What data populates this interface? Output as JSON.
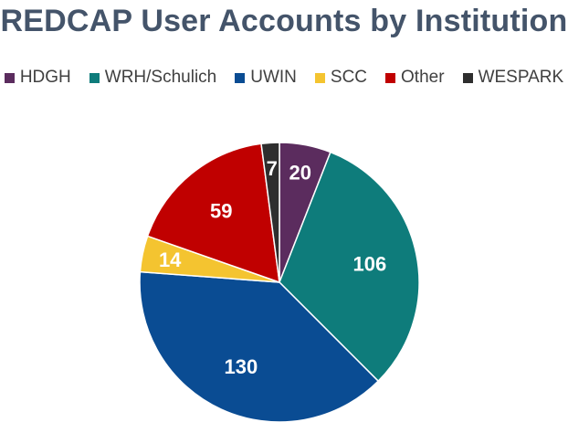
{
  "chart_data": {
    "type": "pie",
    "title": "REDCAP User Accounts by Institution",
    "legend_position": "top",
    "start_angle_deg": 0,
    "direction": "clockwise",
    "slices": [
      {
        "label": "HDGH",
        "value": 20,
        "color": "#5B2C5E"
      },
      {
        "label": "WRH/Schulich",
        "value": 106,
        "color": "#0E7C7B"
      },
      {
        "label": "UWIN",
        "value": 130,
        "color": "#0A4C93"
      },
      {
        "label": "SCC",
        "value": 14,
        "color": "#F4C430"
      },
      {
        "label": "Other",
        "value": 59,
        "color": "#C00000"
      },
      {
        "label": "WESPARK",
        "value": 7,
        "color": "#2E2E2E"
      }
    ]
  }
}
